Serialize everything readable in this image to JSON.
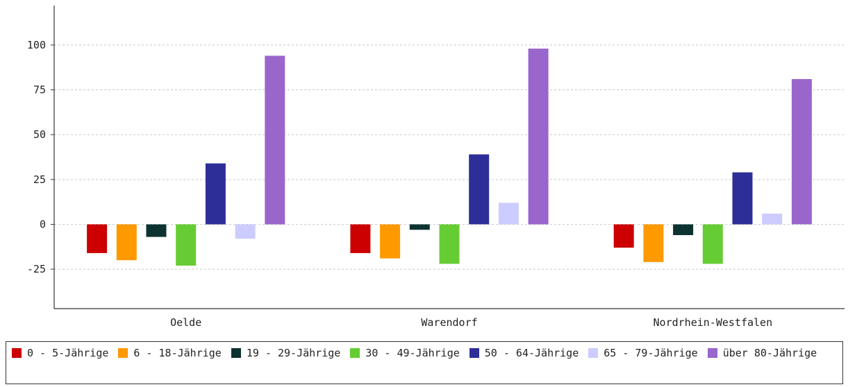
{
  "chart_data": {
    "type": "bar",
    "title": "",
    "xlabel": "",
    "ylabel": "",
    "categories": [
      "Oelde",
      "Warendorf",
      "Nordrhein-Westfalen"
    ],
    "ylim": [
      -47,
      122
    ],
    "yticks": [
      -25,
      0,
      25,
      50,
      75,
      100
    ],
    "yticks_labels": [
      "-25",
      "0",
      "25",
      "50",
      "75",
      "100"
    ],
    "grid": true,
    "legend_position": "bottom",
    "series": [
      {
        "name": "0 - 5-Jährige",
        "color": "#cc0000",
        "values": [
          -16,
          -16,
          -13
        ]
      },
      {
        "name": "6 - 18-Jährige",
        "color": "#ff9900",
        "values": [
          -20,
          -19,
          -21
        ]
      },
      {
        "name": "19 - 29-Jährige",
        "color": "#0d3330",
        "values": [
          -7,
          -3,
          -6
        ]
      },
      {
        "name": "30 - 49-Jährige",
        "color": "#66cc33",
        "values": [
          -23,
          -22,
          -22
        ]
      },
      {
        "name": "50 - 64-Jährige",
        "color": "#2e2e99",
        "values": [
          34,
          39,
          29
        ]
      },
      {
        "name": "65 - 79-Jährige",
        "color": "#ccccff",
        "values": [
          -8,
          12,
          6
        ]
      },
      {
        "name": "über 80-Jährige",
        "color": "#9966cc",
        "values": [
          94,
          98,
          81
        ]
      }
    ]
  }
}
